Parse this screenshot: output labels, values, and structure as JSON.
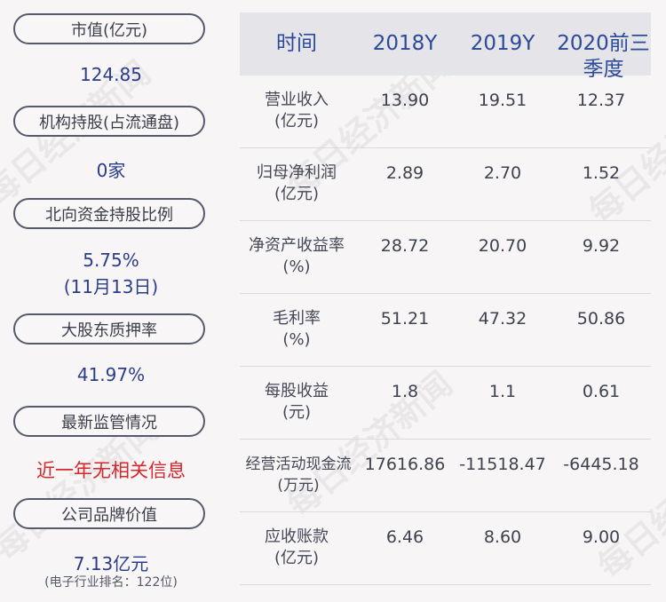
{
  "left": [
    {
      "label": "市值(亿元)",
      "value": "124.85"
    },
    {
      "label": "机构持股(占流通盘)",
      "value": "0家"
    },
    {
      "label": "北向资金持股比例",
      "value": "5.75%",
      "value2": "(11月13日)"
    },
    {
      "label": "大股东质押率",
      "value": "41.97%"
    },
    {
      "label": "最新监管情况",
      "value": "近一年无相关信息"
    },
    {
      "label": "公司品牌价值",
      "value": "7.13亿元",
      "note": "(电子行业排名：122位)"
    }
  ],
  "table": {
    "headers": [
      "时间",
      "2018Y",
      "2019Y",
      "2020前三",
      "季度"
    ],
    "rows": [
      {
        "label1": "营业收入",
        "label2": "(亿元)",
        "v": [
          "13.90",
          "19.51",
          "12.37"
        ]
      },
      {
        "label1": "归母净利润",
        "label2": "(亿元)",
        "v": [
          "2.89",
          "2.70",
          "1.52"
        ]
      },
      {
        "label1": "净资产收益率",
        "label2": "(%)",
        "v": [
          "28.72",
          "20.70",
          "9.92"
        ]
      },
      {
        "label1": "毛利率",
        "label2": "(%)",
        "v": [
          "51.21",
          "47.32",
          "50.86"
        ]
      },
      {
        "label1": "每股收益",
        "label2": "(元)",
        "v": [
          "1.8",
          "1.1",
          "0.61"
        ]
      },
      {
        "label1": "经营活动现金流",
        "label2": "(万元)",
        "v": [
          "17616.86",
          "-11518.47",
          "-6445.18"
        ]
      },
      {
        "label1": "应收账款",
        "label2": "(亿元)",
        "v": [
          "6.46",
          "8.60",
          "9.00"
        ]
      }
    ]
  },
  "watermark": "每日经济新闻",
  "colors": {
    "value_blue": "#2a3d8a",
    "alert_red": "#d8262b",
    "header_blue": "#2b4a9a"
  }
}
